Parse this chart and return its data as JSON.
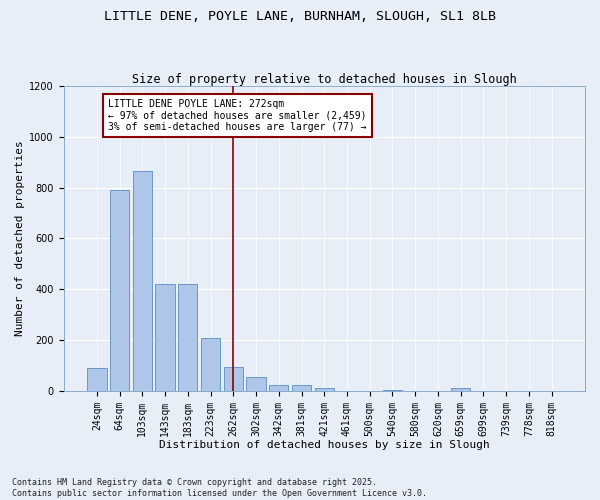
{
  "title1": "LITTLE DENE, POYLE LANE, BURNHAM, SLOUGH, SL1 8LB",
  "title2": "Size of property relative to detached houses in Slough",
  "xlabel": "Distribution of detached houses by size in Slough",
  "ylabel": "Number of detached properties",
  "categories": [
    "24sqm",
    "64sqm",
    "103sqm",
    "143sqm",
    "183sqm",
    "223sqm",
    "262sqm",
    "302sqm",
    "342sqm",
    "381sqm",
    "421sqm",
    "461sqm",
    "500sqm",
    "540sqm",
    "580sqm",
    "620sqm",
    "659sqm",
    "699sqm",
    "739sqm",
    "778sqm",
    "818sqm"
  ],
  "values": [
    90,
    790,
    865,
    420,
    420,
    210,
    95,
    55,
    22,
    22,
    12,
    0,
    0,
    5,
    0,
    0,
    12,
    0,
    0,
    0,
    0
  ],
  "bar_color": "#aec6e8",
  "bar_edge_color": "#5a8fc2",
  "bg_color": "#e8eef7",
  "grid_color": "#ffffff",
  "vline_x_index": 6,
  "annotation_text_line1": "LITTLE DENE POYLE LANE: 272sqm",
  "annotation_text_line2": "← 97% of detached houses are smaller (2,459)",
  "annotation_text_line3": "3% of semi-detached houses are larger (77) →",
  "annotation_box_color": "#ffffff",
  "annotation_border_color": "#8b0000",
  "vline_color": "#8b0000",
  "footer1": "Contains HM Land Registry data © Crown copyright and database right 2025.",
  "footer2": "Contains public sector information licensed under the Open Government Licence v3.0.",
  "ylim": [
    0,
    1200
  ],
  "yticks": [
    0,
    200,
    400,
    600,
    800,
    1000,
    1200
  ],
  "title1_fontsize": 9.5,
  "title2_fontsize": 8.5,
  "axis_fontsize": 8,
  "tick_fontsize": 7,
  "annotation_fontsize": 7,
  "footer_fontsize": 6
}
